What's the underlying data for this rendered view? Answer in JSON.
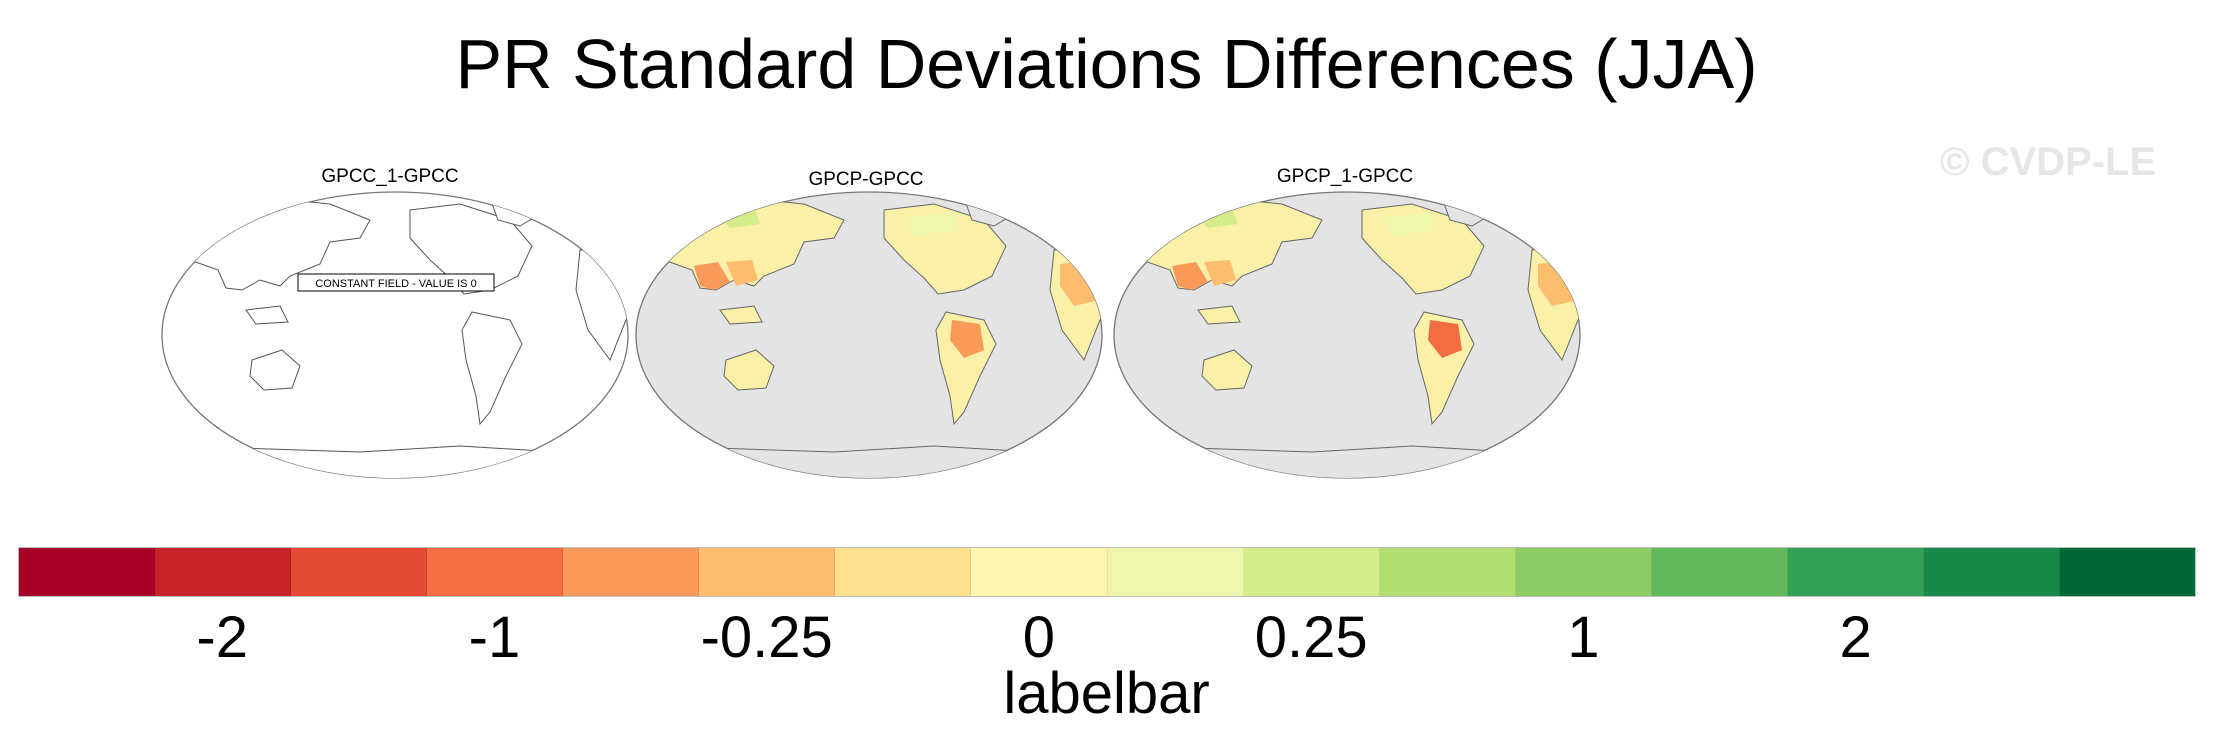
{
  "title": "PR Standard Deviations Differences (JJA)",
  "watermark": "© CVDP-LE",
  "panels": [
    {
      "title": "GPCC_1-GPCC",
      "note": "CONSTANT FIELD - VALUE IS 0",
      "ocean_color": "#ffffff",
      "land_color": "#ffffff"
    },
    {
      "title": "GPCP-GPCC",
      "ocean_color": "#e4e4e4",
      "land_color": "#fbf0a8"
    },
    {
      "title": "GPCP_1-GPCC",
      "ocean_color": "#e4e4e4",
      "land_color": "#fbf0a8"
    }
  ],
  "colorbar": {
    "label": "labelbar",
    "colors": [
      "#a50026",
      "#c72228",
      "#e34a33",
      "#f26d43",
      "#f99a59",
      "#fdbd6f",
      "#fde08d",
      "#fef5b0",
      "#eef7ad",
      "#d5ec8b",
      "#b2dd6f",
      "#8ccb66",
      "#62b85d",
      "#33a153",
      "#168847",
      "#006837"
    ],
    "tick_labels": [
      "-2",
      "-1",
      "-0.25",
      "0",
      "0.25",
      "1",
      "2"
    ]
  }
}
